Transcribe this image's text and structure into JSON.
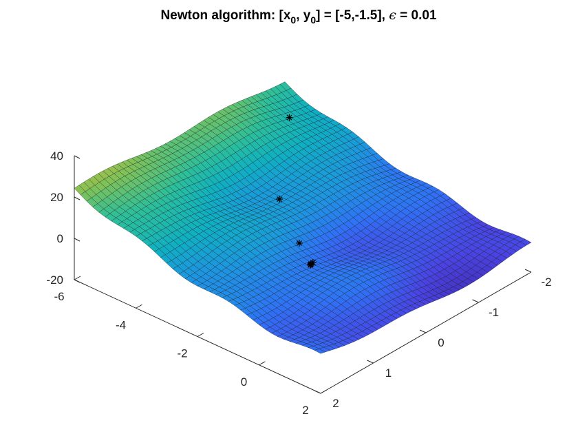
{
  "title": {
    "prefix": "Newton algorithm: [x",
    "sub0": "0",
    "mid1": ", y",
    "sub1": "0",
    "mid2": "] = [-5,-1.5], ",
    "epsilon": "ϵ",
    "suffix": " = 0.01"
  },
  "chart_data": {
    "type": "surface",
    "title": "Newton algorithm: [x0, y0] = [-5,-1.5], ϵ = 0.01",
    "x_axis": {
      "ticks": [
        -6,
        -4,
        -2,
        0,
        2
      ],
      "tick_labels": [
        "-6",
        "-4",
        "-2",
        "0",
        "2"
      ],
      "lim": [
        -6,
        2
      ]
    },
    "y_axis": {
      "ticks": [
        -2,
        -1,
        0,
        1,
        2
      ],
      "tick_labels": [
        "-2",
        "-1",
        "0",
        "1",
        "2"
      ],
      "lim": [
        -2,
        2
      ]
    },
    "z_axis": {
      "ticks": [
        -20,
        0,
        20,
        40
      ],
      "tick_labels": [
        "-20",
        "0",
        "20",
        "40"
      ],
      "lim": [
        -20,
        40
      ]
    },
    "colormap": [
      "#3e26a8",
      "#4a43e3",
      "#2f72f6",
      "#1d96e0",
      "#0fb0c2",
      "#2cbf9b",
      "#80c258",
      "#cdbb3a",
      "#fdbc3d",
      "#f9fb15"
    ],
    "iterates": [
      {
        "x": -5,
        "y": -1.5
      },
      {
        "x": -3.1,
        "y": -0.2
      },
      {
        "x": -1.6,
        "y": 0.3
      },
      {
        "x": -0.9,
        "y": 0.45
      },
      {
        "x": -0.88,
        "y": 0.5
      },
      {
        "x": -0.86,
        "y": 0.52
      },
      {
        "x": -0.85,
        "y": 0.53
      }
    ]
  }
}
